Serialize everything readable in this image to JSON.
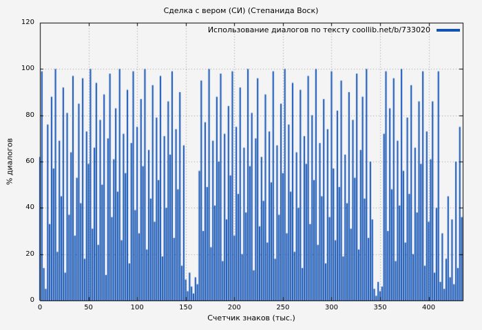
{
  "page": {
    "background": "#f4f4f4"
  },
  "chart_data": {
    "type": "bar",
    "title": "Сделка с вером (СИ) (Степанида Воск)",
    "legend": "Использование диалогов по тексту coollib.net/b/733020",
    "xlabel": "Счетчик знаков (тыс.)",
    "ylabel": "% диалогов",
    "xlim": [
      0,
      435
    ],
    "ylim": [
      0,
      120
    ],
    "x_ticks": [
      0,
      50,
      100,
      150,
      200,
      250,
      300,
      350,
      400
    ],
    "y_ticks": [
      0,
      20,
      40,
      60,
      80,
      100,
      120
    ],
    "grid": true,
    "legend_position": "top-right-inside",
    "bar_color": "#1253b4",
    "grid_color": "#9a9a9a",
    "border_color": "#000000",
    "x_start": 0,
    "x_step": 2,
    "values": [
      62,
      99,
      14,
      5,
      76,
      33,
      88,
      57,
      100,
      21,
      69,
      45,
      92,
      12,
      81,
      37,
      64,
      97,
      28,
      53,
      85,
      42,
      96,
      18,
      73,
      59,
      100,
      31,
      66,
      94,
      24,
      78,
      50,
      89,
      11,
      70,
      98,
      36,
      61,
      83,
      47,
      100,
      26,
      72,
      55,
      91,
      16,
      68,
      99,
      39,
      75,
      29,
      87,
      58,
      100,
      22,
      65,
      44,
      93,
      34,
      79,
      52,
      97,
      19,
      71,
      40,
      86,
      63,
      99,
      27,
      74,
      48,
      90,
      15,
      67,
      9,
      4,
      12,
      6,
      3,
      10,
      7,
      56,
      95,
      30,
      77,
      49,
      100,
      23,
      69,
      41,
      88,
      60,
      98,
      17,
      72,
      35,
      84,
      54,
      99,
      28,
      75,
      46,
      92,
      20,
      66,
      38,
      100,
      58,
      81,
      13,
      70,
      96,
      32,
      62,
      43,
      89,
      25,
      73,
      51,
      99,
      18,
      67,
      37,
      85,
      55,
      100,
      29,
      76,
      47,
      94,
      21,
      64,
      40,
      91,
      14,
      71,
      59,
      97,
      33,
      80,
      52,
      100,
      24,
      68,
      45,
      87,
      16,
      74,
      36,
      99,
      57,
      26,
      82,
      49,
      95,
      19,
      63,
      42,
      90,
      31,
      78,
      53,
      98,
      22,
      65,
      88,
      44,
      100,
      27,
      60,
      35,
      5,
      2,
      8,
      4,
      6,
      72,
      99,
      30,
      83,
      48,
      96,
      17,
      69,
      41,
      100,
      56,
      25,
      79,
      46,
      93,
      20,
      66,
      38,
      86,
      59,
      99,
      15,
      73,
      34,
      61,
      86,
      12,
      40,
      99,
      8,
      29,
      5,
      18,
      45,
      10,
      35,
      7,
      60,
      14,
      75,
      36
    ]
  }
}
